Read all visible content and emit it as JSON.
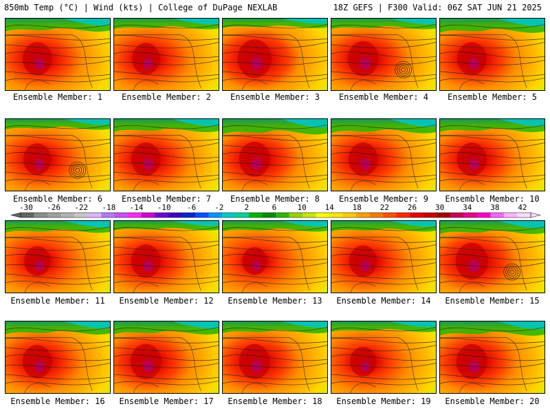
{
  "header": {
    "left": "850mb Temp (°C) | Wind (kts) | College of DuPage NEXLAB",
    "right": "18Z GEFS | F300 Valid: 06Z SAT JUN 21 2025"
  },
  "panels": [
    {
      "label": "Ensemble Member: 1",
      "heat": 0.7,
      "cold": 0.55,
      "low": false
    },
    {
      "label": "Ensemble Member: 2",
      "heat": 0.65,
      "cold": 0.45,
      "low": false
    },
    {
      "label": "Ensemble Member: 3",
      "heat": 0.85,
      "cold": 0.4,
      "low": false
    },
    {
      "label": "Ensemble Member: 4",
      "heat": 0.75,
      "cold": 0.45,
      "low": true
    },
    {
      "label": "Ensemble Member: 5",
      "heat": 0.7,
      "cold": 0.6,
      "low": false
    },
    {
      "label": "Ensemble Member: 6",
      "heat": 0.65,
      "cold": 0.45,
      "low": true
    },
    {
      "label": "Ensemble Member: 7",
      "heat": 0.7,
      "cold": 0.55,
      "low": false
    },
    {
      "label": "Ensemble Member: 8",
      "heat": 0.75,
      "cold": 0.65,
      "low": false
    },
    {
      "label": "Ensemble Member: 9",
      "heat": 0.7,
      "cold": 0.6,
      "low": false
    },
    {
      "label": "Ensemble Member: 10",
      "heat": 0.7,
      "cold": 0.55,
      "low": false
    },
    {
      "label": "Ensemble Member: 11",
      "heat": 0.6,
      "cold": 0.5,
      "low": false
    },
    {
      "label": "Ensemble Member: 12",
      "heat": 0.7,
      "cold": 0.4,
      "low": false
    },
    {
      "label": "Ensemble Member: 13",
      "heat": 0.55,
      "cold": 0.45,
      "low": false
    },
    {
      "label": "Ensemble Member: 14",
      "heat": 0.65,
      "cold": 0.45,
      "low": false
    },
    {
      "label": "Ensemble Member: 15",
      "heat": 0.8,
      "cold": 0.55,
      "low": true
    },
    {
      "label": "Ensemble Member: 16",
      "heat": 0.7,
      "cold": 0.55,
      "low": false
    },
    {
      "label": "Ensemble Member: 17",
      "heat": 0.75,
      "cold": 0.55,
      "low": false
    },
    {
      "label": "Ensemble Member: 18",
      "heat": 0.75,
      "cold": 0.5,
      "low": false
    },
    {
      "label": "Ensemble Member: 19",
      "heat": 0.6,
      "cold": 0.45,
      "low": false
    },
    {
      "label": "Ensemble Member: 20",
      "heat": 0.75,
      "cold": 0.6,
      "low": false
    }
  ],
  "colorbar": {
    "labels": [
      "-30",
      "-26",
      "-22",
      "-18",
      "-14",
      "-10",
      "-6",
      "-2",
      "2",
      "6",
      "10",
      "14",
      "18",
      "22",
      "26",
      "30",
      "34",
      "38",
      "42"
    ],
    "colors": [
      "#646464",
      "#8c8c8c",
      "#a0a0a0",
      "#b4b4b4",
      "#c8c8c8",
      "#dcb4ff",
      "#b478ff",
      "#c850ff",
      "#ff28ff",
      "#d200d2",
      "#6e00d2",
      "#3c00c8",
      "#0028c8",
      "#0050ff",
      "#0096ff",
      "#00c8c8",
      "#00d296",
      "#00b400",
      "#008c00",
      "#32b400",
      "#96d200",
      "#c8e600",
      "#ffff00",
      "#ffe600",
      "#ffc800",
      "#ffa000",
      "#ff7800",
      "#ff5000",
      "#ff2800",
      "#e60000",
      "#c80000",
      "#a00000",
      "#c8005a",
      "#e6008c",
      "#ff00c8",
      "#ff64ff",
      "#ffb4ff",
      "#ffdcff"
    ]
  }
}
